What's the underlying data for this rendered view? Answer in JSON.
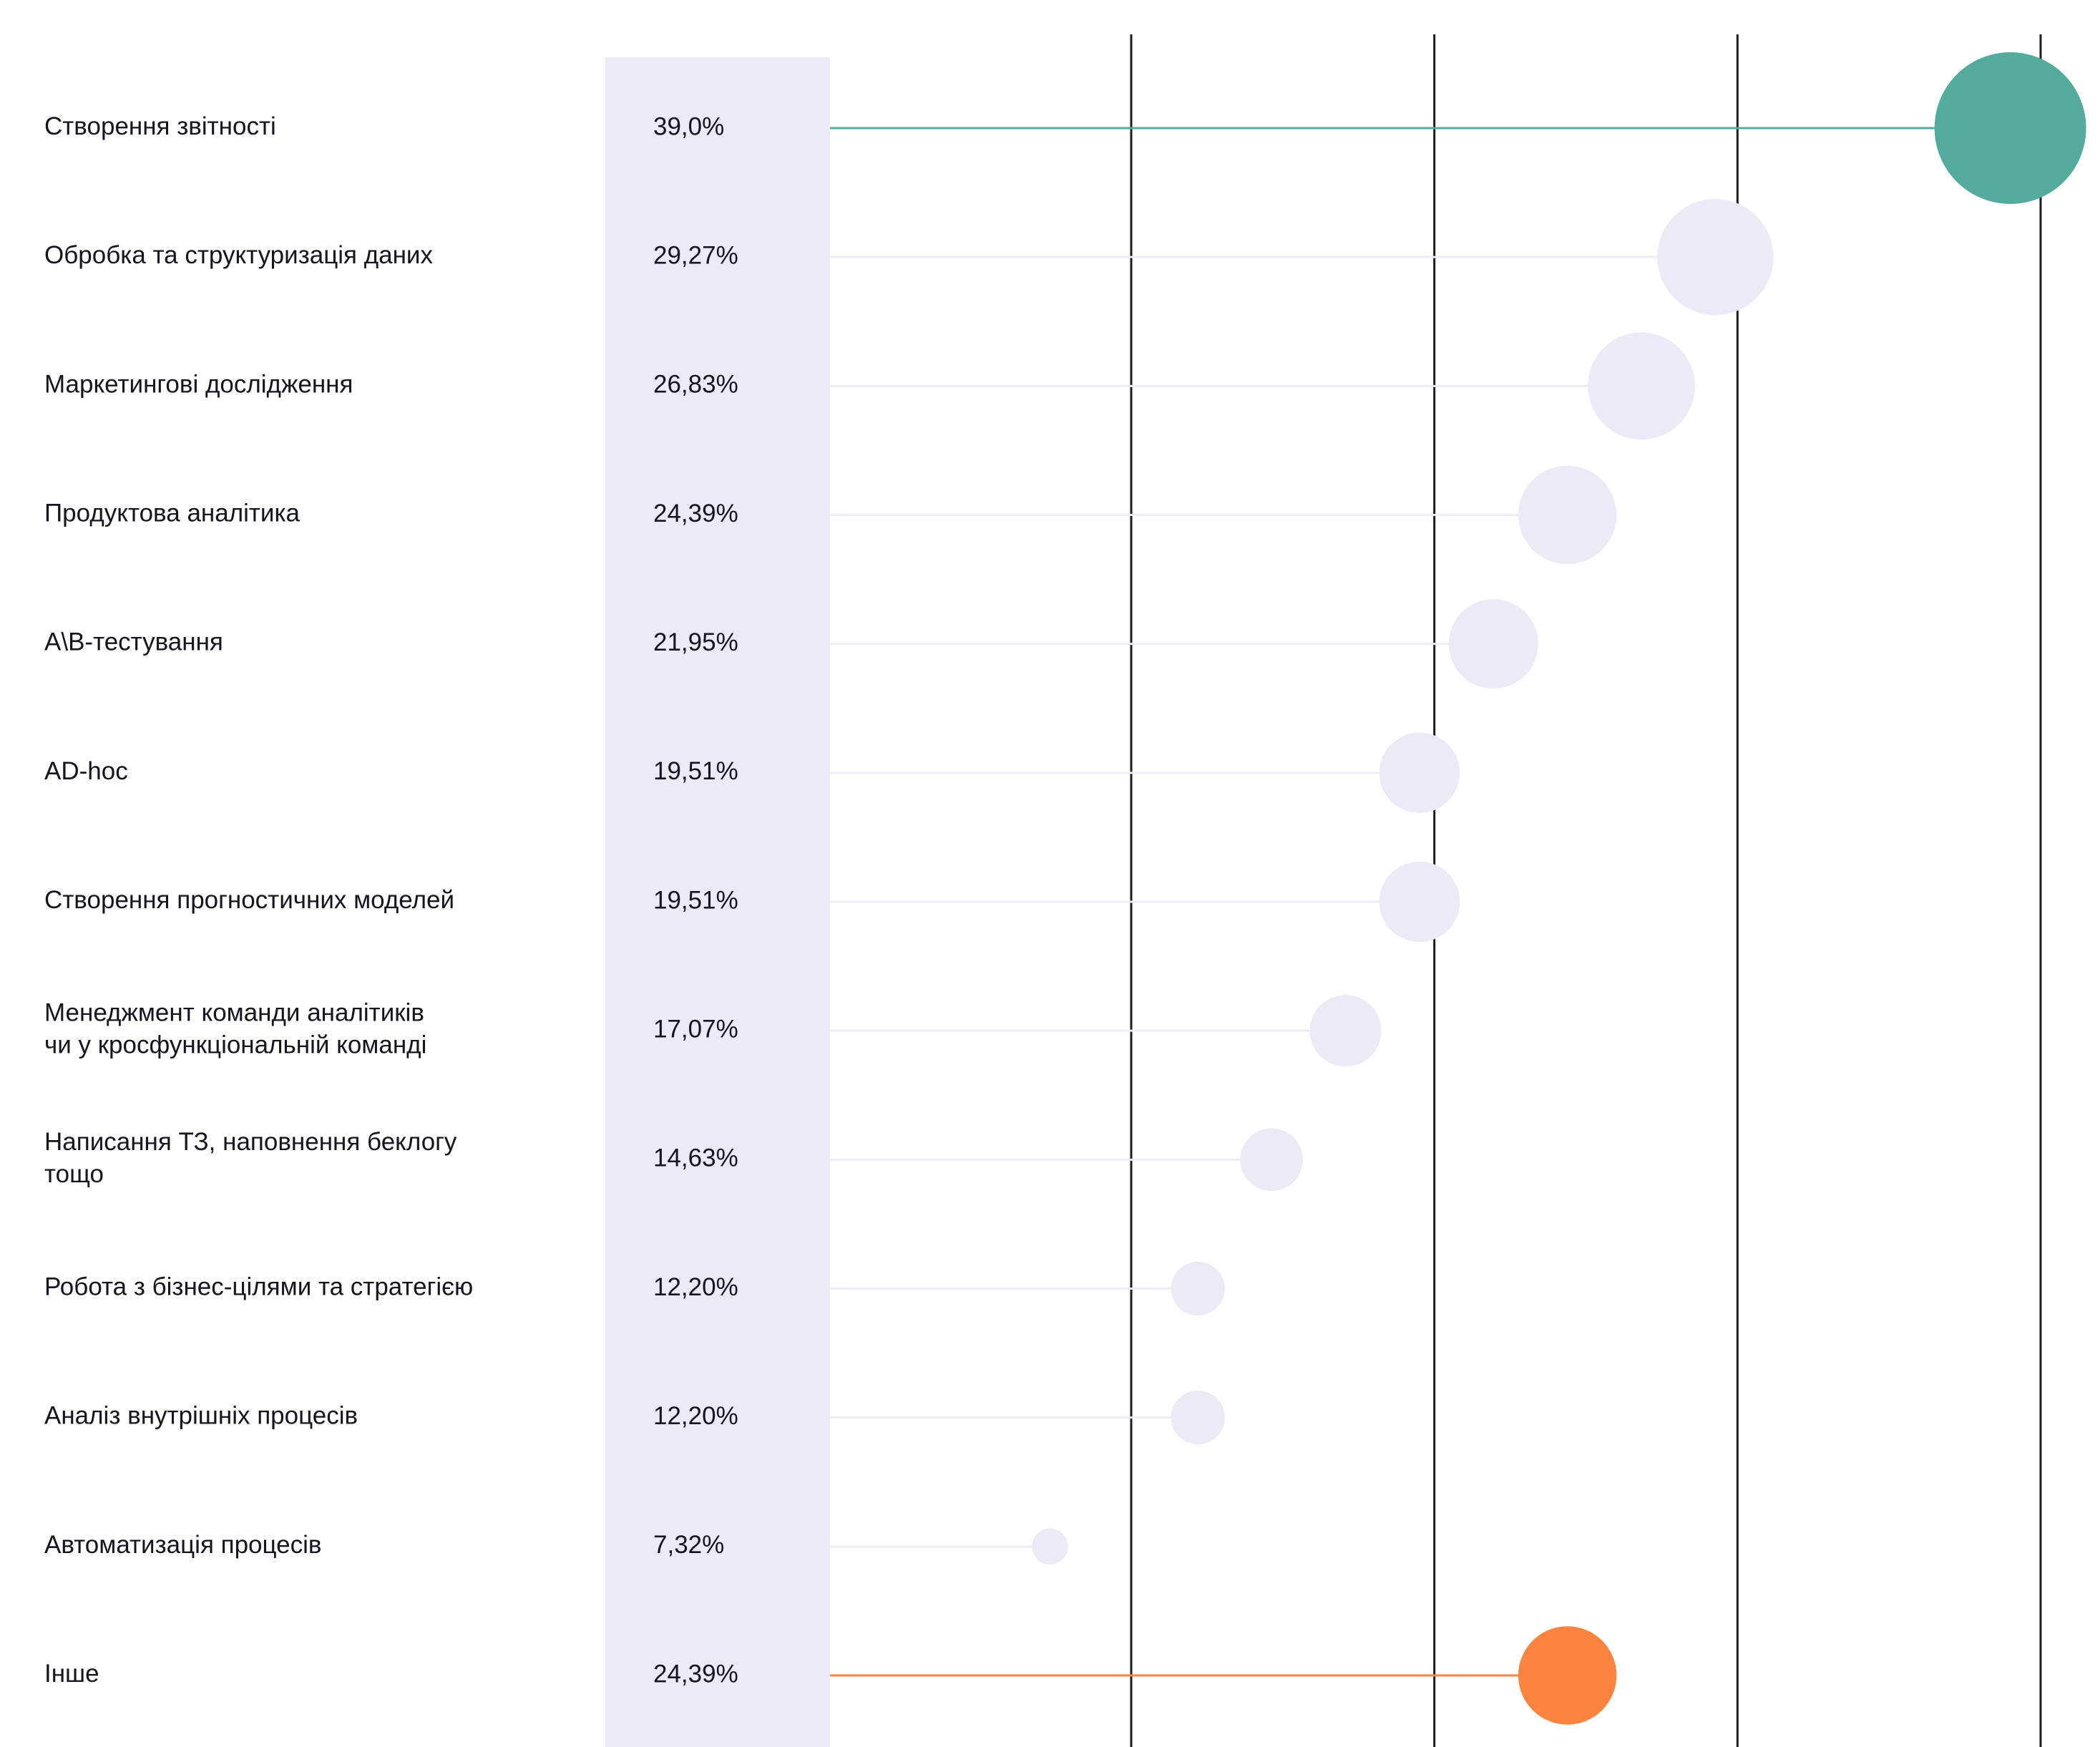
{
  "chart_data": {
    "type": "scatter",
    "title": "",
    "xlabel": "",
    "ylabel": "",
    "xlim": [
      0,
      40
    ],
    "grid_x": [
      10,
      20,
      30,
      40
    ],
    "legend": "none",
    "colors": {
      "highlight_top": "#52ab9c",
      "highlight_bottom": "#fd8440",
      "default_bubble": "#ebeaf6",
      "value_band": "#ebeaf6",
      "connector": "#eeedf5",
      "gridline": "#1b1b24",
      "text": "#15151f"
    },
    "rows": [
      {
        "label": [
          "Створення звітності"
        ],
        "value_label": "39,0%",
        "value": 39.0,
        "highlight": "top"
      },
      {
        "label": [
          "Обробка та структуризація даних"
        ],
        "value_label": "29,27%",
        "value": 29.27
      },
      {
        "label": [
          "Маркетингові дослідження"
        ],
        "value_label": "26,83%",
        "value": 26.83
      },
      {
        "label": [
          "Продуктова аналітика"
        ],
        "value_label": "24,39%",
        "value": 24.39
      },
      {
        "label": [
          "A\\B-тестування"
        ],
        "value_label": "21,95%",
        "value": 21.95
      },
      {
        "label": [
          "AD-hoc"
        ],
        "value_label": "19,51%",
        "value": 19.51
      },
      {
        "label": [
          "Створення прогностичних моделей"
        ],
        "value_label": "19,51%",
        "value": 19.51
      },
      {
        "label": [
          "Менеджмент команди аналітиків",
          "чи у кросфункціональній команді"
        ],
        "value_label": "17,07%",
        "value": 17.07
      },
      {
        "label": [
          "Написання ТЗ, наповнення беклогу",
          "тощо"
        ],
        "value_label": "14,63%",
        "value": 14.63
      },
      {
        "label": [
          "Робота з бізнес-цілями та стратегією"
        ],
        "value_label": "12,20%",
        "value": 12.2
      },
      {
        "label": [
          "Аналіз внутрішніх процесів"
        ],
        "value_label": "12,20%",
        "value": 12.2
      },
      {
        "label": [
          "Автоматизація процесів"
        ],
        "value_label": "7,32%",
        "value": 7.32
      },
      {
        "label": [
          "Інше"
        ],
        "value_label": "24,39%",
        "value": 24.39,
        "highlight": "bottom"
      }
    ]
  }
}
